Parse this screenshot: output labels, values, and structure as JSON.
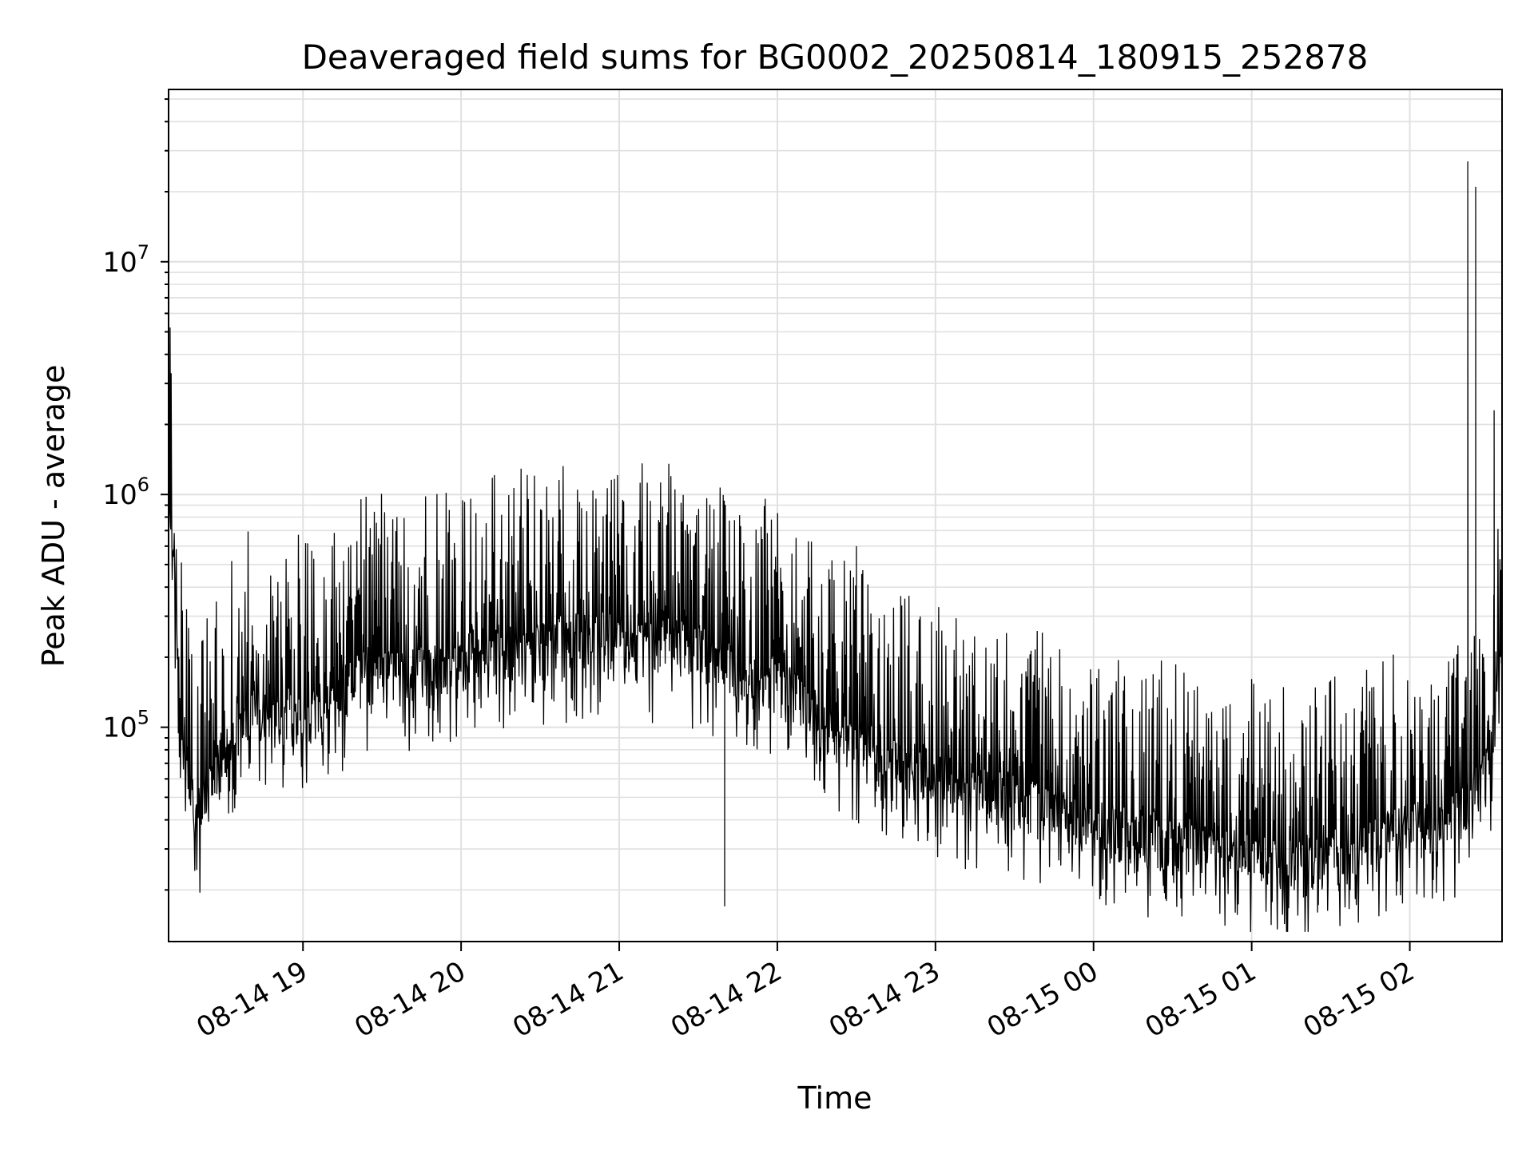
{
  "chart_data": {
    "type": "line",
    "title": "Deaveraged field sums for BG0002_20250814_180915_252878",
    "xlabel": "Time",
    "ylabel": "Peak ADU - average",
    "x_ticks": [
      {
        "label": "08-14 19",
        "value": "2025-08-14 19:00"
      },
      {
        "label": "08-14 20",
        "value": "2025-08-14 20:00"
      },
      {
        "label": "08-14 21",
        "value": "2025-08-14 21:00"
      },
      {
        "label": "08-14 22",
        "value": "2025-08-14 22:00"
      },
      {
        "label": "08-14 23",
        "value": "2025-08-14 23:00"
      },
      {
        "label": "08-15 00",
        "value": "2025-08-15 00:00"
      },
      {
        "label": "08-15 01",
        "value": "2025-08-15 01:00"
      },
      {
        "label": "08-15 02",
        "value": "2025-08-15 02:00"
      }
    ],
    "xlim": [
      "2025-08-14 18:09",
      "2025-08-15 02:35"
    ],
    "y_scale": "log",
    "ylim": [
      12000,
      55000000
    ],
    "y_ticks": [
      {
        "base": "10",
        "exponent": "5",
        "value": 100000
      },
      {
        "base": "10",
        "exponent": "6",
        "value": 1000000
      },
      {
        "base": "10",
        "exponent": "7",
        "value": 10000000
      }
    ],
    "grid": true,
    "legend": "none",
    "colors": {
      "line": "#000000",
      "grid": "#e0e0e0",
      "axes": "#000000",
      "background": "#ffffff"
    },
    "series": [
      {
        "x": [
          "2025-08-14 18:09",
          "2025-08-14 18:15",
          "2025-08-14 18:20",
          "2025-08-14 18:30",
          "2025-08-14 18:40",
          "2025-08-14 18:50",
          "2025-08-14 19:00",
          "2025-08-14 19:10",
          "2025-08-14 19:20",
          "2025-08-14 19:30",
          "2025-08-14 19:40",
          "2025-08-14 19:50",
          "2025-08-14 20:00",
          "2025-08-14 20:10",
          "2025-08-14 20:20",
          "2025-08-14 20:30",
          "2025-08-14 20:40",
          "2025-08-14 20:50",
          "2025-08-14 21:00",
          "2025-08-14 21:10",
          "2025-08-14 21:20",
          "2025-08-14 21:30",
          "2025-08-14 21:40",
          "2025-08-14 21:50",
          "2025-08-14 22:00",
          "2025-08-14 22:10",
          "2025-08-14 22:20",
          "2025-08-14 22:30",
          "2025-08-14 22:40",
          "2025-08-14 22:50",
          "2025-08-14 23:00",
          "2025-08-14 23:10",
          "2025-08-14 23:20",
          "2025-08-14 23:30",
          "2025-08-14 23:40",
          "2025-08-14 23:50",
          "2025-08-15 00:00",
          "2025-08-15 00:10",
          "2025-08-15 00:20",
          "2025-08-15 00:30",
          "2025-08-15 00:40",
          "2025-08-15 00:50",
          "2025-08-15 01:00",
          "2025-08-15 01:10",
          "2025-08-15 01:20",
          "2025-08-15 01:30",
          "2025-08-15 01:40",
          "2025-08-15 01:50",
          "2025-08-15 02:00",
          "2025-08-15 02:10",
          "2025-08-15 02:20",
          "2025-08-15 02:30",
          "2025-08-15 02:35"
        ],
        "y": [
          2000000,
          100000,
          65000,
          130000,
          200000,
          180000,
          190000,
          200000,
          260000,
          280000,
          270000,
          300000,
          330000,
          350000,
          350000,
          360000,
          380000,
          400000,
          390000,
          380000,
          370000,
          340000,
          300000,
          280000,
          250000,
          200000,
          160000,
          140000,
          120000,
          110000,
          100000,
          90000,
          85000,
          80000,
          72000,
          65000,
          60000,
          58000,
          55000,
          52000,
          50000,
          48000,
          45000,
          42000,
          40000,
          45000,
          48000,
          55000,
          60000,
          62000,
          70000,
          110000,
          380000
        ],
        "spikes": [
          {
            "x": "2025-08-14 21:40",
            "y": 17000
          },
          {
            "x": "2025-08-14 22:30",
            "y": 600000
          },
          {
            "x": "2025-08-15 01:25",
            "y": 16000
          },
          {
            "x": "2025-08-15 02:22",
            "y": 27000000
          },
          {
            "x": "2025-08-15 02:25",
            "y": 21000000
          },
          {
            "x": "2025-08-15 02:32",
            "y": 2300000
          }
        ]
      }
    ]
  }
}
